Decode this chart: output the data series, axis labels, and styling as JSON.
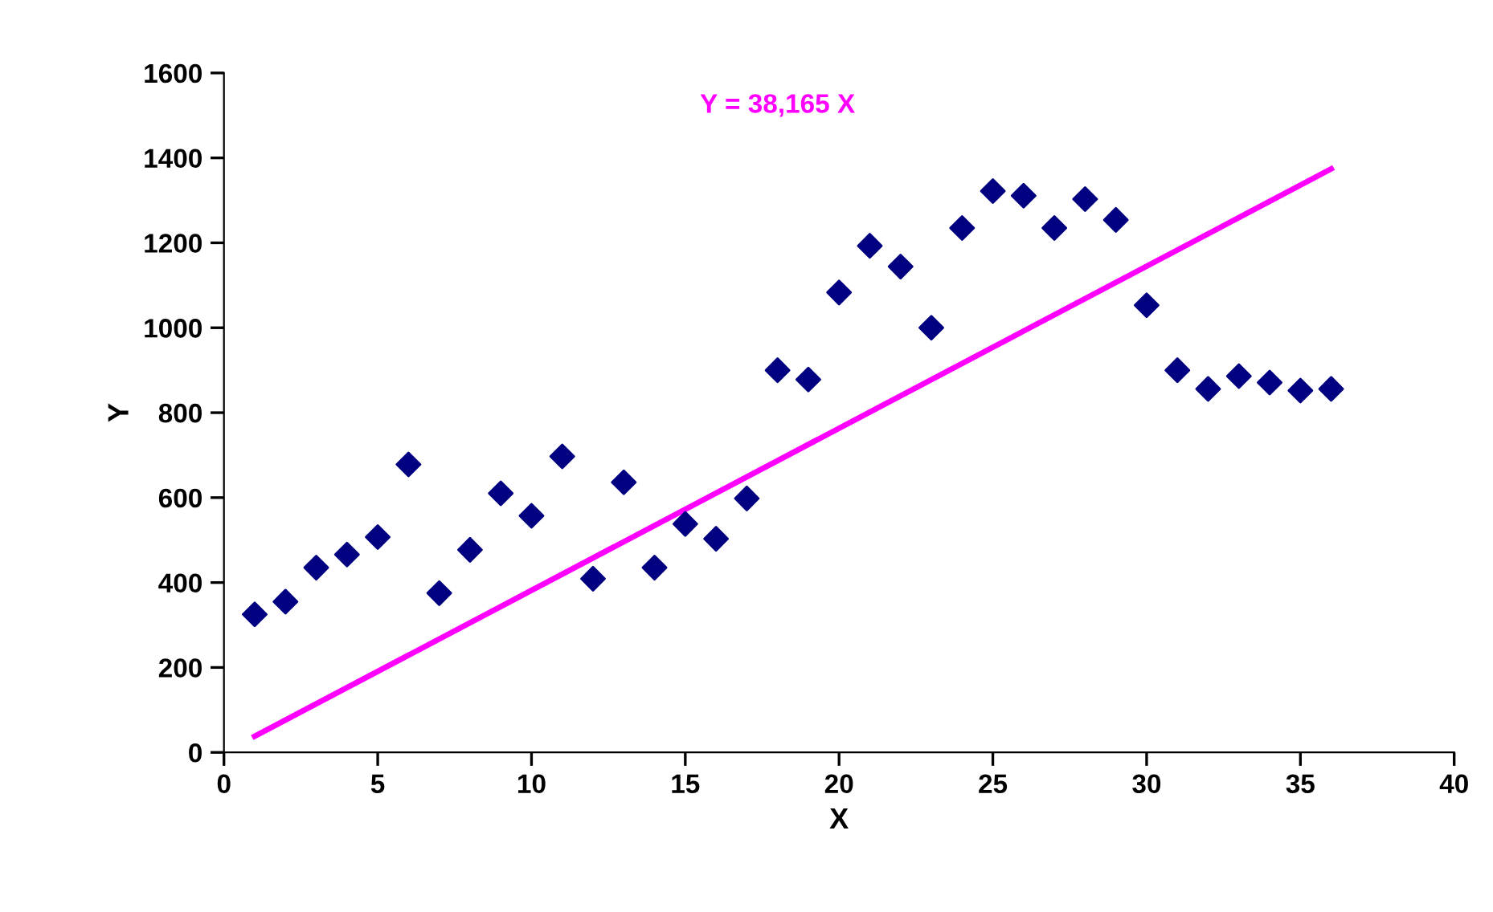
{
  "chart_data": {
    "type": "scatter",
    "xlabel": "X",
    "ylabel": "Y",
    "annotations": [
      "Y = 38,165 X"
    ],
    "xlim": [
      0,
      40
    ],
    "xticks": [
      0,
      5,
      10,
      15,
      20,
      25,
      30,
      35,
      40
    ],
    "ylim": [
      0,
      1600
    ],
    "yticks": [
      0,
      200,
      400,
      600,
      800,
      1000,
      1200,
      1400,
      1600
    ],
    "grid": false,
    "legend": false,
    "marker": "diamond",
    "series": [
      {
        "color": "#000080",
        "x": [
          1,
          2,
          3,
          4,
          5,
          6,
          7,
          8,
          9,
          10,
          11,
          12,
          13,
          14,
          15,
          16,
          17,
          18,
          19,
          20,
          21,
          22,
          23,
          24,
          25,
          26,
          27,
          28,
          29,
          30,
          31,
          32,
          33,
          34,
          35,
          36
        ],
        "values": [
          325,
          355,
          435,
          466,
          507,
          678,
          375,
          477,
          610,
          557,
          697,
          409,
          636,
          435,
          538,
          503,
          598,
          900,
          878,
          1083,
          1193,
          1144,
          1000,
          1235,
          1322,
          1311,
          1235,
          1303,
          1254,
          1053,
          900,
          856,
          886,
          871,
          852,
          856
        ]
      },
      {
        "type": "line",
        "color": "#ff00ff",
        "x": [
          1,
          36
        ],
        "values": [
          38,
          1374
        ],
        "marker": "none",
        "line_style": "solid"
      }
    ]
  }
}
